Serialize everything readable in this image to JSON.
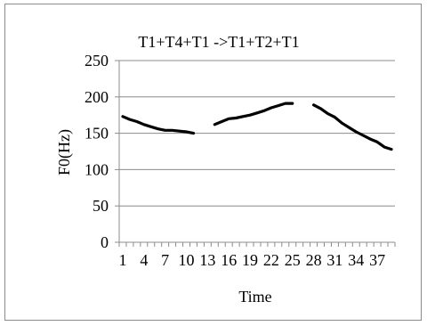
{
  "chart_data": {
    "type": "line",
    "title": "T1+T4+T1 ->T1+T2+T1",
    "xlabel": "Time",
    "ylabel": "F0(Hz)",
    "ylim": [
      0,
      250
    ],
    "yticks": [
      "0",
      "50",
      "100",
      "150",
      "200",
      "250"
    ],
    "x_tick_labels": [
      {
        "x": 1,
        "label": "1"
      },
      {
        "x": 4,
        "label": "4"
      },
      {
        "x": 7,
        "label": "7"
      },
      {
        "x": 10,
        "label": "10"
      },
      {
        "x": 13,
        "label": "13"
      },
      {
        "x": 16,
        "label": "16"
      },
      {
        "x": 19,
        "label": "19"
      },
      {
        "x": 22,
        "label": "22"
      },
      {
        "x": 25,
        "label": "25"
      },
      {
        "x": 28,
        "label": "28"
      },
      {
        "x": 31,
        "label": "31"
      },
      {
        "x": 34,
        "label": "34"
      },
      {
        "x": 37,
        "label": "37"
      }
    ],
    "x_count": 39,
    "grid": "horizontal",
    "legend": "none",
    "line_color": "#000000",
    "segments": [
      {
        "x": [
          1,
          2,
          3,
          4,
          5,
          6,
          7,
          8,
          9,
          10,
          11
        ],
        "values": [
          173,
          169,
          166,
          162,
          159,
          156,
          154,
          154,
          153,
          152,
          150
        ]
      },
      {
        "x": [
          14,
          15,
          16,
          17,
          18,
          19,
          20,
          21,
          22,
          23,
          24,
          25
        ],
        "values": [
          162,
          166,
          170,
          171,
          173,
          175,
          178,
          181,
          185,
          188,
          191,
          191
        ]
      },
      {
        "x": [
          28,
          29,
          30,
          31,
          32,
          33,
          34,
          35,
          36,
          37,
          38,
          39
        ],
        "values": [
          189,
          184,
          177,
          172,
          164,
          158,
          152,
          147,
          142,
          138,
          131,
          128
        ]
      }
    ]
  }
}
